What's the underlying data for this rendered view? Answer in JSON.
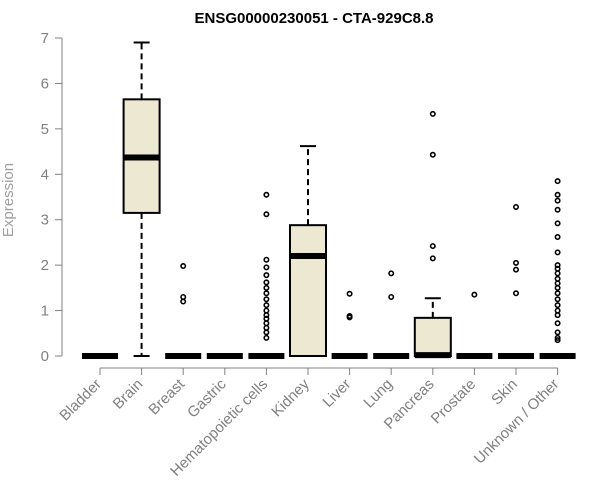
{
  "chart_data": {
    "type": "boxplot",
    "title": "ENSG00000230051 - CTA-929C8.8",
    "ylabel": "Expression",
    "xlabel": "",
    "ylim": [
      0,
      7
    ],
    "yticks": [
      0,
      1,
      2,
      3,
      4,
      5,
      6,
      7
    ],
    "grid": false,
    "box_fill": "#ede8d2",
    "box_edge": "#000000",
    "categories": [
      "Bladder",
      "Brain",
      "Breast",
      "Gastric",
      "Hematopoietic cells",
      "Kidney",
      "Liver",
      "Lung",
      "Pancreas",
      "Prostate",
      "Skin",
      "Unknown / Other"
    ],
    "boxes": [
      {
        "category": "Bladder",
        "whisker_low": 0,
        "q1": 0,
        "median": 0,
        "q3": 0,
        "whisker_high": 0,
        "outliers": []
      },
      {
        "category": "Brain",
        "whisker_low": 0,
        "q1": 3.15,
        "median": 4.37,
        "q3": 5.65,
        "whisker_high": 6.9,
        "outliers": []
      },
      {
        "category": "Breast",
        "whisker_low": 0,
        "q1": 0,
        "median": 0,
        "q3": 0,
        "whisker_high": 0,
        "outliers": [
          1.98,
          1.3,
          1.2
        ]
      },
      {
        "category": "Gastric",
        "whisker_low": 0,
        "q1": 0,
        "median": 0,
        "q3": 0,
        "whisker_high": 0,
        "outliers": []
      },
      {
        "category": "Hematopoietic cells",
        "whisker_low": 0,
        "q1": 0,
        "median": 0,
        "q3": 0,
        "whisker_high": 0,
        "outliers": [
          3.55,
          3.12,
          2.12,
          1.95,
          1.78,
          1.62,
          1.5,
          1.38,
          1.25,
          1.12,
          1.0,
          0.9,
          0.82,
          0.72,
          0.62,
          0.52,
          0.4
        ]
      },
      {
        "category": "Kidney",
        "whisker_low": 0,
        "q1": 0,
        "median": 2.2,
        "q3": 2.88,
        "whisker_high": 4.62,
        "outliers": []
      },
      {
        "category": "Liver",
        "whisker_low": 0,
        "q1": 0,
        "median": 0,
        "q3": 0,
        "whisker_high": 0,
        "outliers": [
          1.37,
          0.88,
          0.85
        ]
      },
      {
        "category": "Lung",
        "whisker_low": 0,
        "q1": 0,
        "median": 0,
        "q3": 0,
        "whisker_high": 0,
        "outliers": [
          1.82,
          1.3
        ]
      },
      {
        "category": "Pancreas",
        "whisker_low": 0,
        "q1": 0,
        "median": 0.02,
        "q3": 0.84,
        "whisker_high": 1.27,
        "outliers": [
          5.33,
          4.43,
          2.42,
          2.15
        ]
      },
      {
        "category": "Prostate",
        "whisker_low": 0,
        "q1": 0,
        "median": 0,
        "q3": 0,
        "whisker_high": 0,
        "outliers": [
          1.35
        ]
      },
      {
        "category": "Skin",
        "whisker_low": 0,
        "q1": 0,
        "median": 0,
        "q3": 0,
        "whisker_high": 0,
        "outliers": [
          3.28,
          2.05,
          1.9,
          1.38
        ]
      },
      {
        "category": "Unknown / Other",
        "whisker_low": 0,
        "q1": 0,
        "median": 0,
        "q3": 0,
        "whisker_high": 0,
        "outliers": [
          3.85,
          3.55,
          3.42,
          3.22,
          2.92,
          2.62,
          2.28,
          2.0,
          1.92,
          1.82,
          1.7,
          1.6,
          1.5,
          1.38,
          1.25,
          1.12,
          1.0,
          0.9,
          0.72,
          0.52,
          0.4,
          0.35
        ]
      }
    ]
  }
}
